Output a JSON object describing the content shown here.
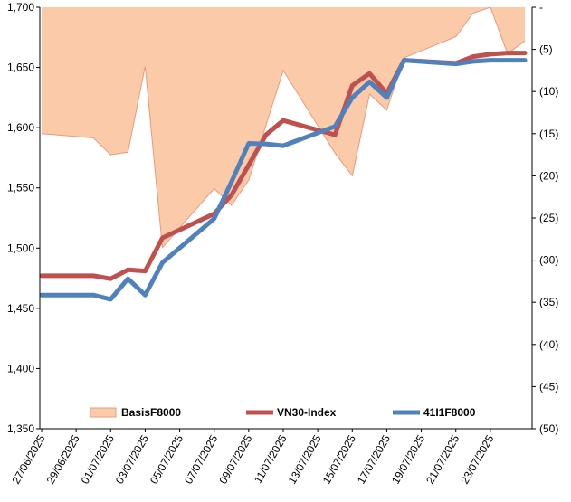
{
  "chart_data": {
    "type": "line",
    "x": [
      "27/06/2025",
      "30/06/2025",
      "01/07/2025",
      "02/07/2025",
      "03/07/2025",
      "04/07/2025",
      "07/07/2025",
      "08/07/2025",
      "09/07/2025",
      "10/07/2025",
      "11/07/2025",
      "14/07/2025",
      "15/07/2025",
      "16/07/2025",
      "17/07/2025",
      "18/07/2025",
      "21/07/2025",
      "22/07/2025",
      "23/07/2025",
      "24/07/2025",
      "25/07/2025"
    ],
    "x_tick_labels": [
      "27/06/2025",
      "29/06/2025",
      "01/07/2025",
      "03/07/2025",
      "05/07/2025",
      "07/07/2025",
      "09/07/2025",
      "11/07/2025",
      "13/07/2025",
      "15/07/2025",
      "17/07/2025",
      "19/07/2025",
      "21/07/2025",
      "23/07/2025"
    ],
    "y_left": {
      "min": 1350,
      "max": 1700,
      "ticks": [
        "1,350",
        "1,400",
        "1,450",
        "1,500",
        "1,550",
        "1,600",
        "1,650",
        "1,700"
      ]
    },
    "y_right": {
      "min": -50,
      "max": 0,
      "ticks": [
        "-",
        "(5)",
        "(10)",
        "(15)",
        "(20)",
        "(25)",
        "(30)",
        "(35)",
        "(40)",
        "(45)",
        "(50)"
      ],
      "reversed": true
    },
    "series": [
      {
        "name": "BasisF8000",
        "type": "area",
        "axis": "right",
        "color": "#FBCBA9",
        "edge_color": "#E89A80",
        "values": [
          -15,
          -15.5,
          -17.5,
          -17.2,
          -7,
          -28.5,
          -21.5,
          -23.5,
          -20.5,
          -14,
          -7.5,
          -17.3,
          -20,
          -10.3,
          -12.2,
          -6,
          -3.5,
          -0.7,
          0,
          -5.5,
          -4
        ]
      },
      {
        "name": "VN30-Index",
        "type": "line",
        "axis": "left",
        "color": "#C0504D",
        "values": [
          1477,
          1477,
          1474.5,
          1482,
          1481,
          1508.5,
          1528.5,
          1544,
          1569,
          1594,
          1606,
          1594,
          1635,
          1645,
          1628.5,
          1656,
          1653.5,
          1659,
          1661,
          1662,
          1662
        ]
      },
      {
        "name": "41I1F8000",
        "type": "line",
        "axis": "left",
        "color": "#4F81BD",
        "values": [
          1461,
          1461,
          1457.5,
          1474.5,
          1461,
          1488,
          1524.5,
          1555,
          1587,
          1586.5,
          1585,
          1601,
          1625,
          1638,
          1625,
          1656,
          1653,
          1655,
          1656,
          1656,
          1656
        ]
      }
    ],
    "legend": {
      "placement": "bottom-inside",
      "entries": [
        "BasisF8000",
        "VN30-Index",
        "41I1F8000"
      ]
    },
    "grid": false
  }
}
